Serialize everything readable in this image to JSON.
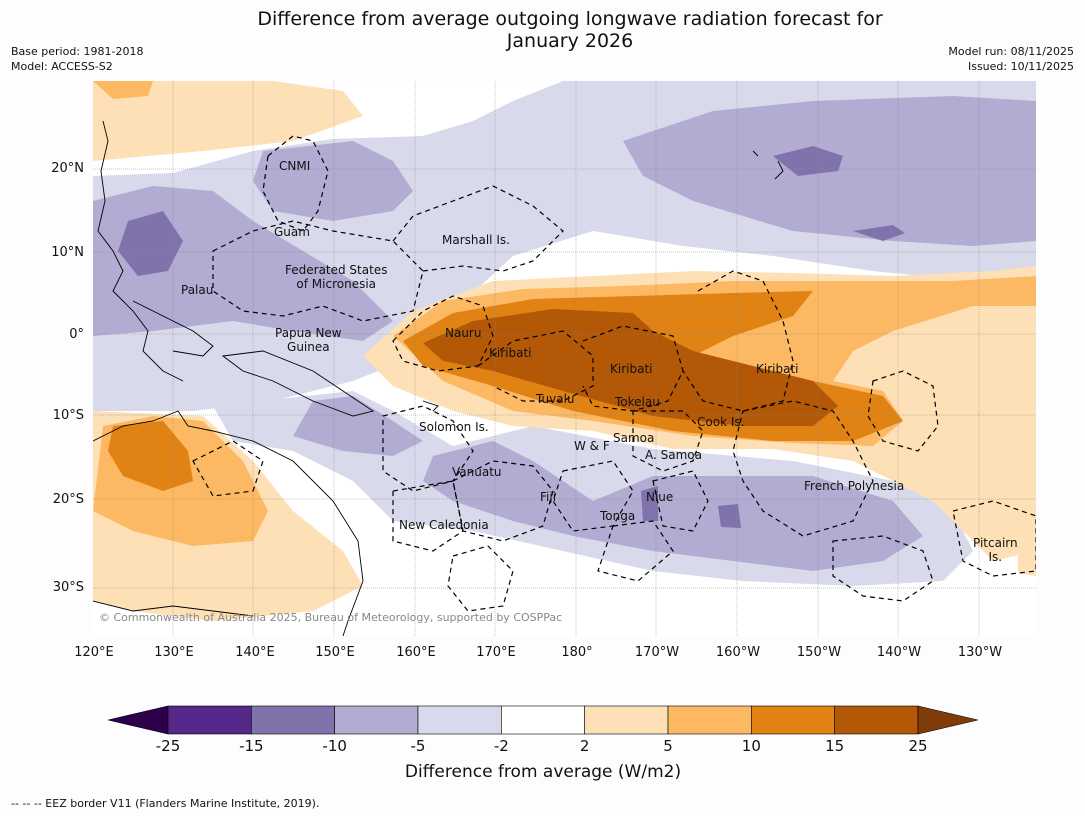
{
  "title_line1": "Difference from average outgoing longwave radiation forecast for",
  "title_line2": "January 2026",
  "base_period": "Base period: 1981-2018",
  "model": "Model: ACCESS-S2",
  "model_run": "Model run: 08/11/2025",
  "issued": "Issued: 10/11/2025",
  "copyright": "© Commonwealth of Australia 2025, Bureau of Meteorology, supported by COSPPac",
  "lat_labels": [
    "20°N",
    "10°N",
    "0°",
    "10°S",
    "20°S",
    "30°S"
  ],
  "lon_labels": [
    "120°E",
    "130°E",
    "140°E",
    "150°E",
    "160°E",
    "170°E",
    "180°",
    "170°W",
    "160°W",
    "150°W",
    "140°W",
    "130°W"
  ],
  "places": {
    "cnmi": "CNMI",
    "guam": "Guam",
    "marshall": "Marshall Is.",
    "fsm1": "Federated States",
    "fsm2": "of Micronesia",
    "palau": "Palau",
    "png1": "Papua New",
    "png2": "Guinea",
    "nauru": "Nauru",
    "kiribati_w": "Kiribati",
    "kiribati_c": "Kiribati",
    "kiribati_e": "Kiribati",
    "tuvalu": "Tuvalu",
    "tokelau": "Tokelau",
    "cook": "Cook Is.",
    "solomon": "Solomon Is.",
    "wf": "W & F",
    "samoa": "Samoa",
    "asamoa": "A. Samoa",
    "vanuatu": "Vanuatu",
    "fiji": "Fiji",
    "niue": "Niue",
    "tonga": "Tonga",
    "newcal": "New Caledonia",
    "frpoly": "French Polynesia",
    "pitcairn1": "Pitcairn",
    "pitcairn2": "Is."
  },
  "colorbar": {
    "title": "Difference from average (W/m2)",
    "ticks": [
      "-25",
      "-15",
      "-10",
      "-5",
      "-2",
      "2",
      "5",
      "10",
      "15",
      "25"
    ],
    "colors": [
      "#2d004b",
      "#542788",
      "#8073ac",
      "#b2abd2",
      "#d8daeb",
      "#ffffff",
      "#fee0b6",
      "#fdb863",
      "#e08214",
      "#b35806",
      "#7f3b08"
    ]
  },
  "footnote": "--  --  -- EEZ border V11 (Flanders Marine Institute, 2019)."
}
